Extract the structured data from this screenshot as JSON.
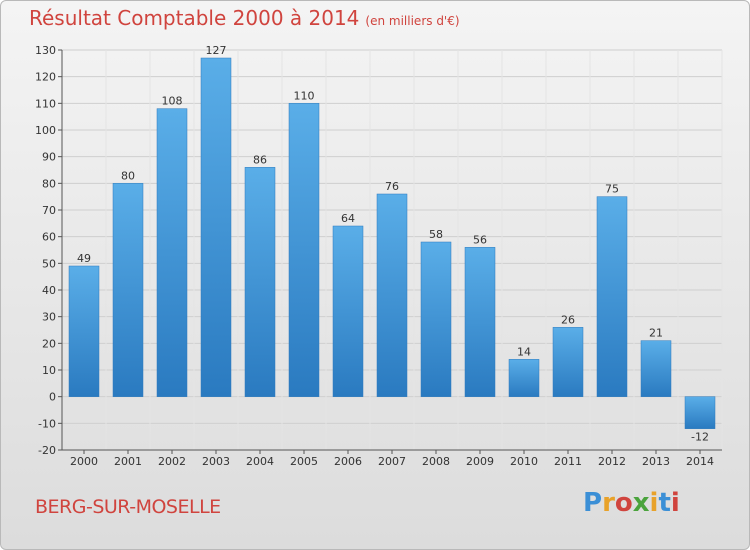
{
  "header": {
    "title": "Résultat Comptable 2000 à 2014",
    "subtitle": "(en milliers d'€)"
  },
  "footer": {
    "place": "BERG-SUR-MOSELLE",
    "logo": "Proxiti",
    "logo_colors": [
      "#3b8fd6",
      "#e8a22a",
      "#d0443e",
      "#4aa33c",
      "#e8a22a",
      "#3b8fd6",
      "#d0443e"
    ]
  },
  "colors": {
    "bar_top": "#5aaee8",
    "bar_bottom": "#2a7ac0",
    "axis_text": "#333333",
    "grid": "#cfcfcf",
    "title": "#d0443e"
  },
  "chart_data": {
    "type": "bar",
    "title": "Résultat Comptable 2000 à 2014",
    "subtitle": "(en milliers d'€)",
    "xlabel": "",
    "ylabel": "",
    "categories": [
      "2000",
      "2001",
      "2002",
      "2003",
      "2004",
      "2005",
      "2006",
      "2007",
      "2008",
      "2009",
      "2010",
      "2011",
      "2012",
      "2013",
      "2014"
    ],
    "values": [
      49,
      80,
      108,
      127,
      86,
      110,
      64,
      76,
      58,
      56,
      14,
      26,
      75,
      21,
      -12
    ],
    "value_labels": [
      "49",
      "80",
      "108",
      "127",
      "86",
      "110",
      "64",
      "76",
      "58",
      "56",
      "14",
      "26",
      "75",
      "21",
      "-12"
    ],
    "ylim": [
      -20,
      130
    ],
    "yticks": [
      -20,
      -10,
      0,
      10,
      20,
      30,
      40,
      50,
      60,
      70,
      80,
      90,
      100,
      110,
      120,
      130
    ],
    "grid": true,
    "legend": "none"
  }
}
